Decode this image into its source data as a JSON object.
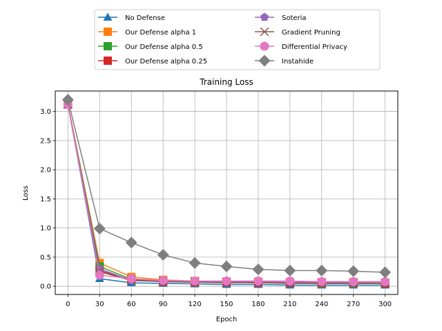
{
  "chart_data": {
    "type": "line",
    "title": "Training Loss",
    "xlabel": "Epoch",
    "ylabel": "Loss",
    "x": [
      0,
      30,
      60,
      90,
      120,
      150,
      180,
      210,
      240,
      270,
      300
    ],
    "xticks": [
      "0",
      "30",
      "60",
      "90",
      "120",
      "150",
      "180",
      "210",
      "240",
      "270",
      "300"
    ],
    "yticks": [
      "0.0",
      "0.5",
      "1.0",
      "1.5",
      "2.0",
      "2.5",
      "3.0"
    ],
    "ytick_values": [
      0,
      0.5,
      1.0,
      1.5,
      2.0,
      2.5,
      3.0
    ],
    "xlim": [
      -12,
      312
    ],
    "ylim": [
      -0.14,
      3.35
    ],
    "grid": true,
    "legend_position": "top-center, outside plot, two columns",
    "series": [
      {
        "name": "No Defense",
        "color": "#1f77b4",
        "marker": "triangle",
        "values": [
          3.12,
          0.13,
          0.06,
          0.05,
          0.04,
          0.03,
          0.03,
          0.02,
          0.02,
          0.02,
          0.02
        ]
      },
      {
        "name": "Our Defense alpha 1",
        "color": "#ff7f0e",
        "marker": "square",
        "values": [
          3.13,
          0.4,
          0.16,
          0.11,
          0.09,
          0.08,
          0.08,
          0.07,
          0.07,
          0.07,
          0.06
        ]
      },
      {
        "name": "Our Defense alpha 0.5",
        "color": "#2ca02c",
        "marker": "square",
        "values": [
          3.12,
          0.34,
          0.12,
          0.09,
          0.08,
          0.07,
          0.06,
          0.06,
          0.05,
          0.05,
          0.05
        ]
      },
      {
        "name": "Our Defense alpha 0.25",
        "color": "#d62728",
        "marker": "square",
        "values": [
          3.12,
          0.27,
          0.11,
          0.08,
          0.07,
          0.07,
          0.06,
          0.06,
          0.06,
          0.06,
          0.05
        ]
      },
      {
        "name": "Soteria",
        "color": "#9467bd",
        "marker": "pentagon",
        "values": [
          3.12,
          0.3,
          0.1,
          0.09,
          0.08,
          0.08,
          0.07,
          0.07,
          0.07,
          0.06,
          0.06
        ]
      },
      {
        "name": "Gradient Pruning",
        "color": "#8c564b",
        "marker": "x",
        "values": [
          3.12,
          0.25,
          0.1,
          0.08,
          0.07,
          0.06,
          0.06,
          0.05,
          0.05,
          0.05,
          0.05
        ]
      },
      {
        "name": "Differential Privacy",
        "color": "#e377c2",
        "marker": "circle",
        "values": [
          3.12,
          0.19,
          0.13,
          0.1,
          0.09,
          0.09,
          0.09,
          0.09,
          0.08,
          0.08,
          0.08
        ]
      },
      {
        "name": "Instahide",
        "color": "#7f7f7f",
        "marker": "diamond",
        "values": [
          3.2,
          0.99,
          0.75,
          0.54,
          0.4,
          0.34,
          0.29,
          0.27,
          0.27,
          0.26,
          0.24
        ]
      }
    ]
  }
}
